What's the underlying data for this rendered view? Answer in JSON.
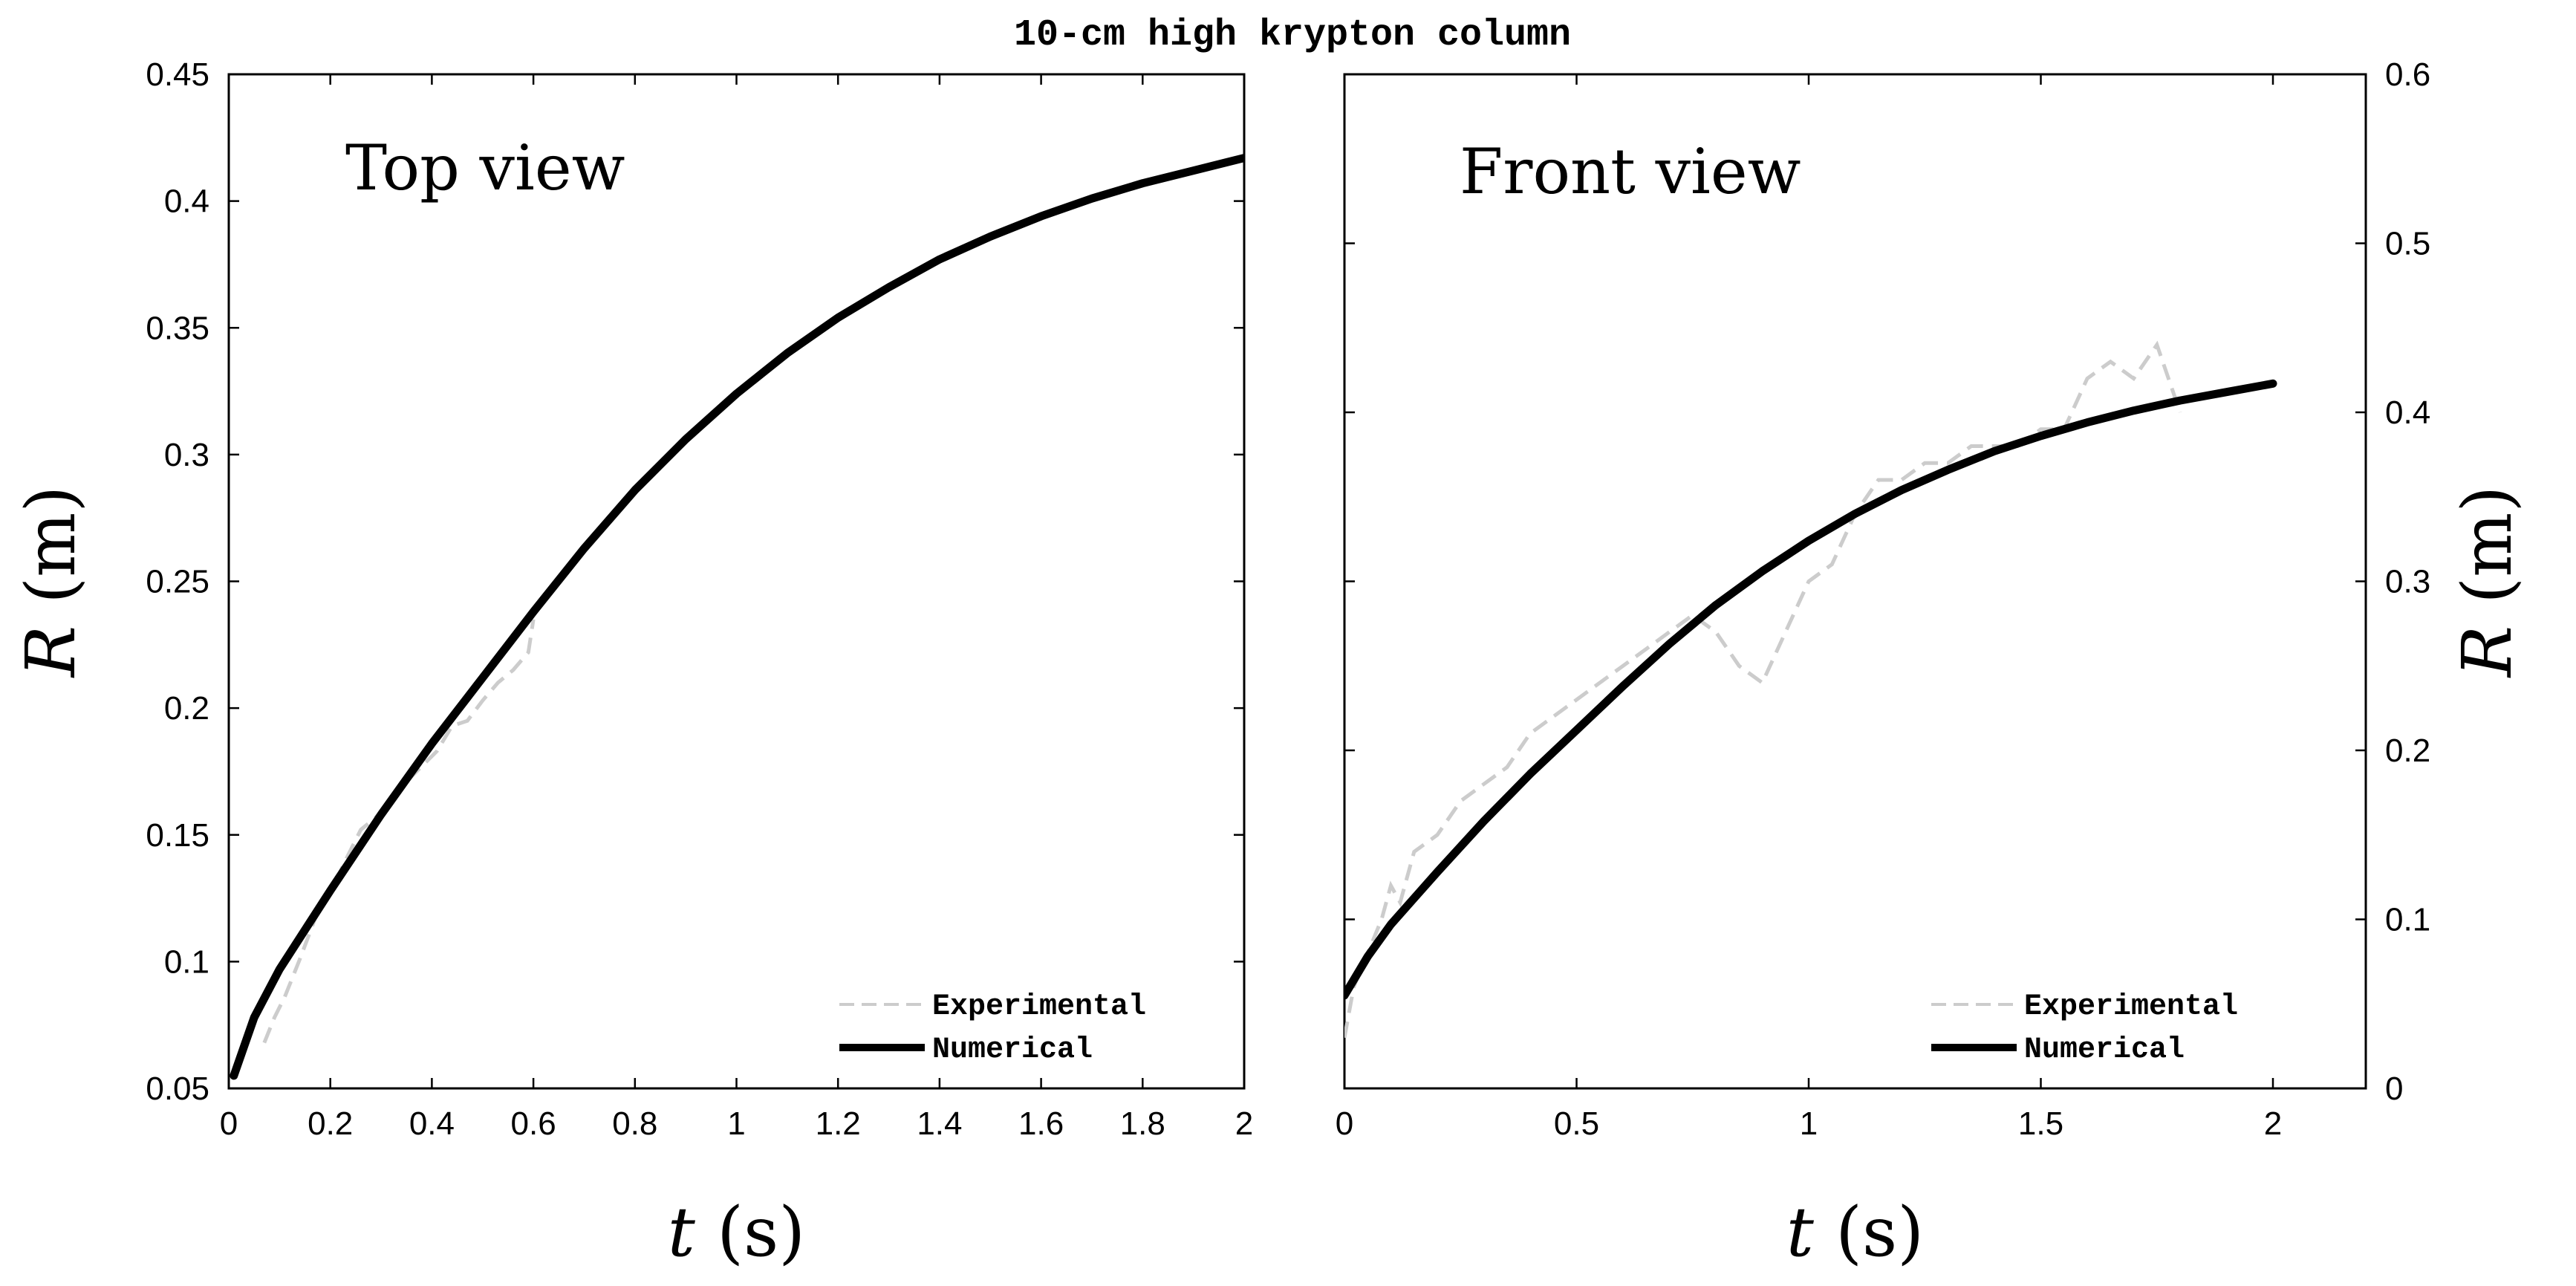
{
  "title": "10-cm high krypton column",
  "colors": {
    "experimental": "#cccccc",
    "numerical": "#000000",
    "axis": "#000000"
  },
  "chart_data": [
    {
      "type": "line",
      "panel_label": "Top view",
      "xlabel_var": "t",
      "xlabel_unit": "(s)",
      "ylabel_var": "R",
      "ylabel_unit": "(m)",
      "xlim": [
        0,
        2
      ],
      "ylim": [
        0.05,
        0.45
      ],
      "xticks": [
        0,
        0.2,
        0.4,
        0.6,
        0.8,
        1,
        1.2,
        1.4,
        1.6,
        1.8,
        2
      ],
      "xtick_labels": [
        "0",
        "0.2",
        "0.4",
        "0.6",
        "0.8",
        "1",
        "1.2",
        "1.4",
        "1.6",
        "1.8",
        "2"
      ],
      "yticks": [
        0.05,
        0.1,
        0.15,
        0.2,
        0.25,
        0.3,
        0.35,
        0.4,
        0.45
      ],
      "ytick_labels": [
        "0.05",
        "0.1",
        "0.15",
        "0.2",
        "0.25",
        "0.3",
        "0.35",
        "0.4",
        "0.45"
      ],
      "legend": [
        "Experimental",
        "Numerical"
      ],
      "legend_position": "bottom-right",
      "series": [
        {
          "name": "Numerical",
          "x": [
            0.01,
            0.05,
            0.1,
            0.2,
            0.3,
            0.4,
            0.5,
            0.6,
            0.7,
            0.8,
            0.9,
            1.0,
            1.1,
            1.2,
            1.3,
            1.4,
            1.5,
            1.6,
            1.7,
            1.8,
            1.9,
            2.0
          ],
          "y": [
            0.055,
            0.078,
            0.097,
            0.128,
            0.158,
            0.186,
            0.212,
            0.238,
            0.263,
            0.286,
            0.306,
            0.324,
            0.34,
            0.354,
            0.366,
            0.377,
            0.386,
            0.394,
            0.401,
            0.407,
            0.412,
            0.417
          ]
        },
        {
          "name": "Experimental",
          "x": [
            0.07,
            0.09,
            0.11,
            0.14,
            0.17,
            0.2,
            0.23,
            0.26,
            0.29,
            0.32,
            0.35,
            0.38,
            0.41,
            0.44,
            0.47,
            0.5,
            0.53,
            0.56,
            0.59,
            0.6
          ],
          "y": [
            0.068,
            0.078,
            0.086,
            0.101,
            0.117,
            0.127,
            0.14,
            0.152,
            0.157,
            0.164,
            0.171,
            0.177,
            0.183,
            0.193,
            0.195,
            0.203,
            0.21,
            0.215,
            0.222,
            0.235
          ]
        }
      ]
    },
    {
      "type": "line",
      "panel_label": "Front view",
      "xlabel_var": "t",
      "xlabel_unit": "(s)",
      "ylabel_var": "R",
      "ylabel_unit": "(m)",
      "xlim": [
        0,
        2.2
      ],
      "ylim": [
        0,
        0.6
      ],
      "xticks": [
        0,
        0.5,
        1,
        1.5,
        2
      ],
      "xtick_labels": [
        "0",
        "0.5",
        "1",
        "1.5",
        "2"
      ],
      "yticks": [
        0,
        0.1,
        0.2,
        0.3,
        0.4,
        0.5,
        0.6
      ],
      "ytick_labels": [
        "0",
        "0.1",
        "0.2",
        "0.3",
        "0.4",
        "0.5",
        "0.6"
      ],
      "legend": [
        "Experimental",
        "Numerical"
      ],
      "legend_position": "bottom-right",
      "series": [
        {
          "name": "Numerical",
          "x": [
            0.0,
            0.05,
            0.1,
            0.2,
            0.3,
            0.4,
            0.5,
            0.6,
            0.7,
            0.8,
            0.9,
            1.0,
            1.1,
            1.2,
            1.3,
            1.4,
            1.5,
            1.6,
            1.7,
            1.8,
            1.9,
            2.0
          ],
          "y": [
            0.055,
            0.078,
            0.097,
            0.128,
            0.158,
            0.186,
            0.212,
            0.238,
            0.263,
            0.286,
            0.306,
            0.324,
            0.34,
            0.354,
            0.366,
            0.377,
            0.386,
            0.394,
            0.401,
            0.407,
            0.412,
            0.417
          ]
        },
        {
          "name": "Experimental",
          "x": [
            0.0,
            0.02,
            0.05,
            0.08,
            0.1,
            0.12,
            0.15,
            0.2,
            0.25,
            0.3,
            0.35,
            0.4,
            0.45,
            0.5,
            0.55,
            0.6,
            0.65,
            0.7,
            0.75,
            0.8,
            0.85,
            0.9,
            0.95,
            1.0,
            1.05,
            1.1,
            1.15,
            1.2,
            1.25,
            1.3,
            1.35,
            1.4,
            1.45,
            1.5,
            1.55,
            1.6,
            1.65,
            1.7,
            1.75,
            1.8
          ],
          "y": [
            0.03,
            0.06,
            0.08,
            0.1,
            0.12,
            0.11,
            0.14,
            0.15,
            0.17,
            0.18,
            0.19,
            0.21,
            0.22,
            0.23,
            0.24,
            0.25,
            0.26,
            0.27,
            0.28,
            0.27,
            0.25,
            0.24,
            0.27,
            0.3,
            0.31,
            0.34,
            0.36,
            0.36,
            0.37,
            0.37,
            0.38,
            0.38,
            0.38,
            0.39,
            0.39,
            0.42,
            0.43,
            0.42,
            0.44,
            0.4
          ]
        }
      ]
    }
  ]
}
